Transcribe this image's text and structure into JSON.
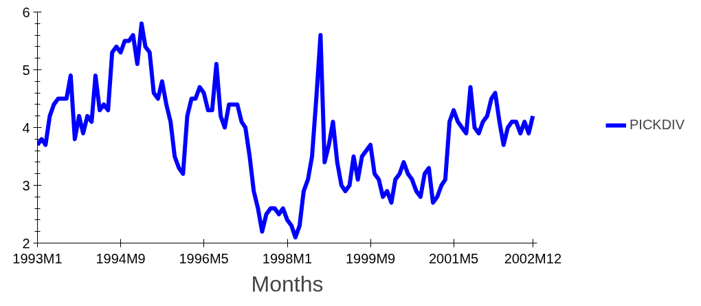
{
  "chart_data": {
    "type": "line",
    "xlabel": "Months",
    "x": [
      "1993-01",
      "1993-02",
      "1993-03",
      "1993-04",
      "1993-05",
      "1993-06",
      "1993-07",
      "1993-08",
      "1993-09",
      "1993-10",
      "1993-11",
      "1993-12",
      "1994-01",
      "1994-02",
      "1994-03",
      "1994-04",
      "1994-05",
      "1994-06",
      "1994-07",
      "1994-08",
      "1994-09",
      "1994-10",
      "1994-11",
      "1994-12",
      "1995-01",
      "1995-02",
      "1995-03",
      "1995-04",
      "1995-05",
      "1995-06",
      "1995-07",
      "1995-08",
      "1995-09",
      "1995-10",
      "1995-11",
      "1995-12",
      "1996-01",
      "1996-02",
      "1996-03",
      "1996-04",
      "1996-05",
      "1996-06",
      "1996-07",
      "1996-08",
      "1996-09",
      "1996-10",
      "1996-11",
      "1996-12",
      "1997-01",
      "1997-02",
      "1997-03",
      "1997-04",
      "1997-05",
      "1997-06",
      "1997-07",
      "1997-08",
      "1997-09",
      "1997-10",
      "1997-11",
      "1997-12",
      "1998-01",
      "1998-02",
      "1998-03",
      "1998-04",
      "1998-05",
      "1998-06",
      "1998-07",
      "1998-08",
      "1998-09",
      "1998-10",
      "1998-11",
      "1998-12",
      "1999-01",
      "1999-02",
      "1999-03",
      "1999-04",
      "1999-05",
      "1999-06",
      "1999-07",
      "1999-08",
      "1999-09",
      "1999-10",
      "1999-11",
      "1999-12",
      "2000-01",
      "2000-02",
      "2000-03",
      "2000-04",
      "2000-05",
      "2000-06",
      "2000-07",
      "2000-08",
      "2000-09",
      "2000-10",
      "2000-11",
      "2000-12",
      "2001-01",
      "2001-02",
      "2001-03",
      "2001-04",
      "2001-05",
      "2001-06",
      "2001-07",
      "2001-08",
      "2001-09",
      "2001-10",
      "2001-11",
      "2001-12",
      "2002-01",
      "2002-02",
      "2002-03",
      "2002-04",
      "2002-05",
      "2002-06",
      "2002-07",
      "2002-08",
      "2002-09",
      "2002-10",
      "2002-11",
      "2002-12"
    ],
    "series": [
      {
        "name": "PICKDIV",
        "color": "#0000ff",
        "values": [
          3.7,
          3.8,
          3.7,
          4.2,
          4.4,
          4.5,
          4.5,
          4.5,
          4.9,
          3.8,
          4.2,
          3.9,
          4.2,
          4.1,
          4.9,
          4.3,
          4.4,
          4.3,
          5.3,
          5.4,
          5.3,
          5.5,
          5.5,
          5.6,
          5.1,
          5.8,
          5.4,
          5.3,
          4.6,
          4.5,
          4.8,
          4.4,
          4.1,
          3.5,
          3.3,
          3.2,
          4.2,
          4.5,
          4.5,
          4.7,
          4.6,
          4.3,
          4.3,
          5.1,
          4.2,
          4.0,
          4.4,
          4.4,
          4.4,
          4.1,
          4.0,
          3.5,
          2.9,
          2.6,
          2.2,
          2.5,
          2.6,
          2.6,
          2.5,
          2.6,
          2.4,
          2.3,
          2.1,
          2.3,
          2.9,
          3.1,
          3.5,
          4.5,
          5.6,
          3.4,
          3.7,
          4.1,
          3.4,
          3.0,
          2.9,
          3.0,
          3.5,
          3.1,
          3.5,
          3.6,
          3.7,
          3.2,
          3.1,
          2.8,
          2.9,
          2.7,
          3.1,
          3.2,
          3.4,
          3.2,
          3.1,
          2.9,
          2.8,
          3.2,
          3.3,
          2.7,
          2.8,
          3.0,
          3.1,
          4.1,
          4.3,
          4.1,
          4.0,
          3.9,
          4.7,
          4.0,
          3.9,
          4.1,
          4.2,
          4.5,
          4.6,
          4.1,
          3.7,
          4.0,
          4.1,
          4.1,
          3.9,
          4.1,
          3.9,
          4.2
        ]
      }
    ],
    "xlim": [
      "1993-01",
      "2003-01"
    ],
    "xticks": [
      {
        "value": "1993-01",
        "label": "1993M1"
      },
      {
        "value": "1994-09",
        "label": "1994M9"
      },
      {
        "value": "1996-05",
        "label": "1996M5"
      },
      {
        "value": "1998-01",
        "label": "1998M1"
      },
      {
        "value": "1999-09",
        "label": "1999M9"
      },
      {
        "value": "2001-05",
        "label": "2001M5"
      },
      {
        "value": "2002-12",
        "label": "2002M12"
      }
    ],
    "ylim": [
      2,
      6
    ],
    "yticks": [
      2,
      {
        "value": 2.2,
        "label": null
      },
      {
        "value": 2.4,
        "label": null
      },
      {
        "value": 2.6,
        "label": null
      },
      {
        "value": 2.8,
        "label": null
      },
      3,
      {
        "value": 3.2,
        "label": null
      },
      {
        "value": 3.4,
        "label": null
      },
      {
        "value": 3.6,
        "label": null
      },
      {
        "value": 3.8,
        "label": null
      },
      4,
      {
        "value": 4.2,
        "label": null
      },
      {
        "value": 4.4,
        "label": null
      },
      {
        "value": 4.6,
        "label": null
      },
      {
        "value": 4.8,
        "label": null
      },
      5,
      {
        "value": 5.2,
        "label": null
      },
      {
        "value": 5.4,
        "label": null
      },
      {
        "value": 5.6,
        "label": null
      },
      {
        "value": 5.8,
        "label": null
      },
      6
    ],
    "grid": false,
    "legend": "right",
    "marker": "none",
    "line_style": "solid"
  }
}
